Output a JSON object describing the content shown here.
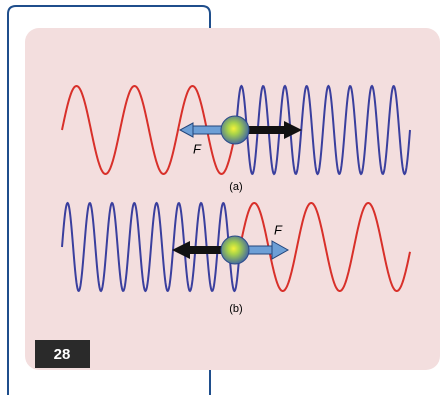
{
  "figure": {
    "panels": [
      {
        "force_label": "F",
        "caption": "(a)"
      },
      {
        "force_label": "F",
        "caption": "(b)"
      }
    ]
  },
  "page_number": "28"
}
